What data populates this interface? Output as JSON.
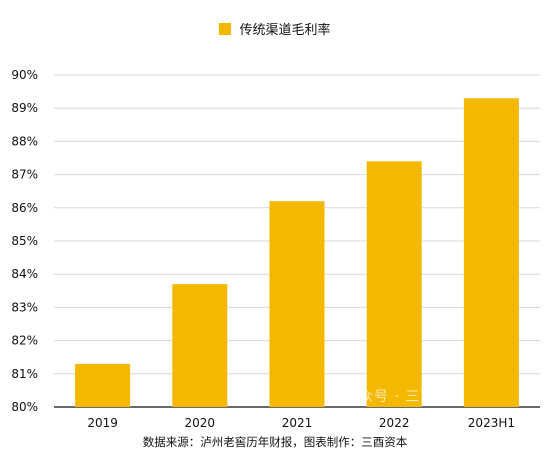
{
  "colors": {
    "bar": "#F5B800",
    "grid": "#d9d9d9",
    "axis": "#111111"
  },
  "source_note": "数据来源：泸州老窖历年财报，图表制作：三酉资本",
  "watermark": "公众号 · 三酉资本",
  "chart_data": {
    "type": "bar",
    "title": "",
    "xlabel": "",
    "ylabel": "",
    "categories": [
      "2019",
      "2020",
      "2021",
      "2022",
      "2023H1"
    ],
    "series": [
      {
        "name": "传统渠道毛利率",
        "values": [
          81.3,
          83.7,
          86.2,
          87.4,
          89.3
        ],
        "color": "#F5B800"
      }
    ],
    "ylim": [
      80,
      90
    ],
    "yticks": [
      80,
      81,
      82,
      83,
      84,
      85,
      86,
      87,
      88,
      89,
      90
    ],
    "ytick_format": "%",
    "grid": true,
    "legend_position": "top-center"
  }
}
